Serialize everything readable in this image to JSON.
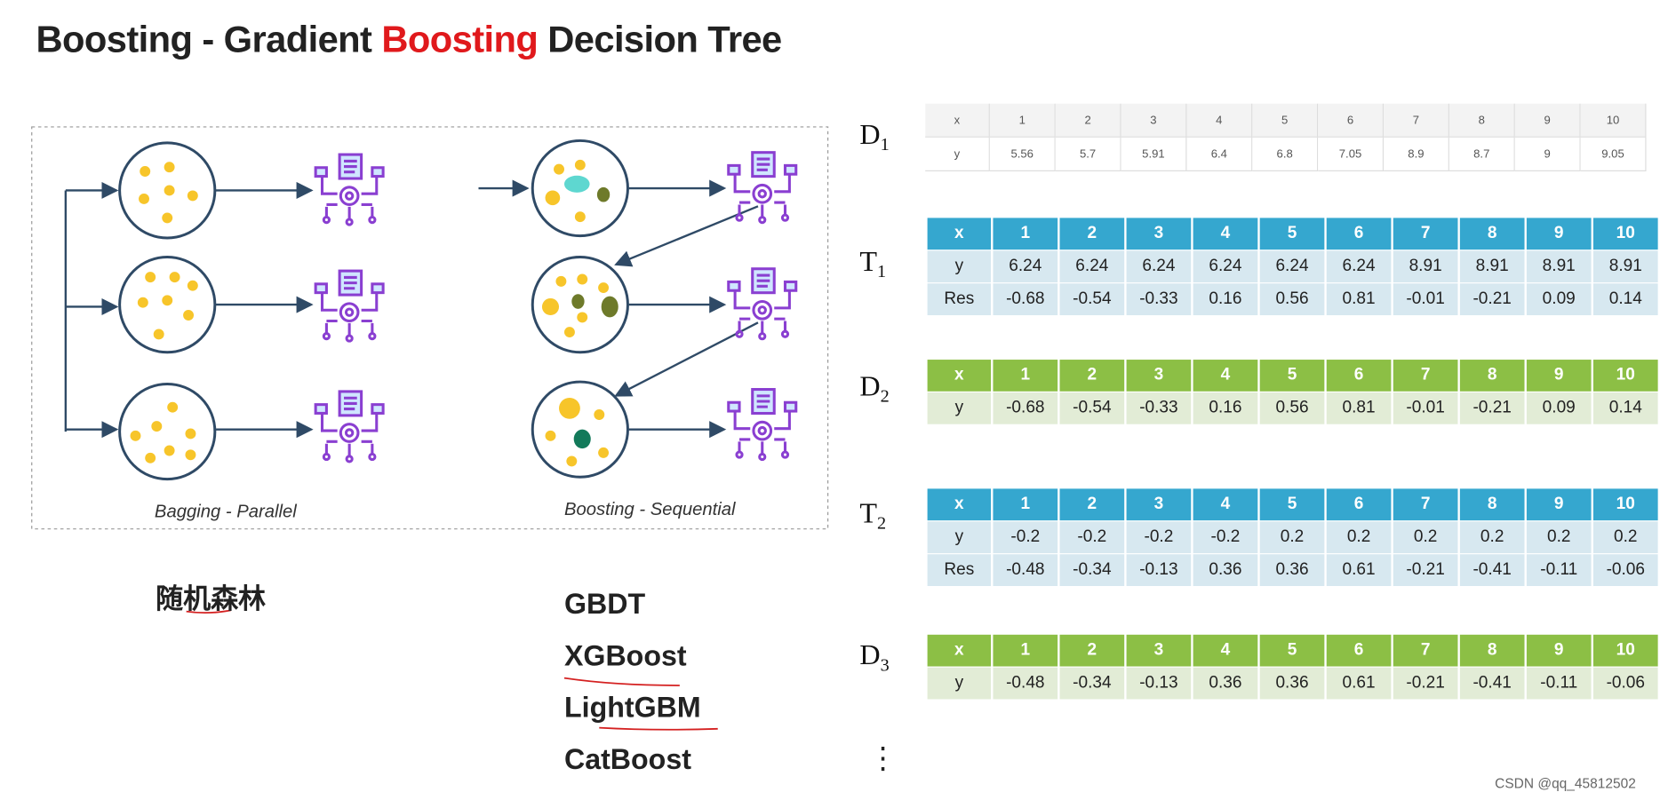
{
  "header": {
    "title_prefix": "Boosting - Gradient",
    "title_highlight": "Boosting",
    "title_suffix": "Decision Tree"
  },
  "diagram": {
    "left_caption": "Bagging - Parallel",
    "right_caption": "Boosting - Sequential"
  },
  "left_label": "随机森林",
  "algorithms": [
    "GBDT",
    "XGBoost",
    "LightGBM",
    "CatBoost"
  ],
  "continuation": "⋮",
  "watermark": "CSDN @qq_45812502",
  "tables": [
    {
      "label": {
        "letter": "D",
        "subscript": "1"
      },
      "rows": [
        {
          "head": "x",
          "cells": [
            "1",
            "2",
            "3",
            "4",
            "5",
            "6",
            "7",
            "8",
            "9",
            "10"
          ]
        },
        {
          "head": "y",
          "cells": [
            "5.56",
            "5.7",
            "5.91",
            "6.4",
            "6.8",
            "7.05",
            "8.9",
            "8.7",
            "9",
            "9.05"
          ]
        }
      ]
    },
    {
      "label": {
        "letter": "T",
        "subscript": "1"
      },
      "header_color": "#35a7cf",
      "body_color": "#d7e8f0",
      "rows": [
        {
          "head": "x",
          "cells": [
            "1",
            "2",
            "3",
            "4",
            "5",
            "6",
            "7",
            "8",
            "9",
            "10"
          ]
        },
        {
          "head": "y",
          "cells": [
            "6.24",
            "6.24",
            "6.24",
            "6.24",
            "6.24",
            "6.24",
            "8.91",
            "8.91",
            "8.91",
            "8.91"
          ]
        },
        {
          "head": "Res",
          "cells": [
            "-0.68",
            "-0.54",
            "-0.33",
            "0.16",
            "0.56",
            "0.81",
            "-0.01",
            "-0.21",
            "0.09",
            "0.14"
          ]
        }
      ]
    },
    {
      "label": {
        "letter": "D",
        "subscript": "2"
      },
      "header_color": "#8cbf45",
      "body_color": "#e2ecd6",
      "rows": [
        {
          "head": "x",
          "cells": [
            "1",
            "2",
            "3",
            "4",
            "5",
            "6",
            "7",
            "8",
            "9",
            "10"
          ]
        },
        {
          "head": "y",
          "cells": [
            "-0.68",
            "-0.54",
            "-0.33",
            "0.16",
            "0.56",
            "0.81",
            "-0.01",
            "-0.21",
            "0.09",
            "0.14"
          ]
        }
      ]
    },
    {
      "label": {
        "letter": "T",
        "subscript": "2"
      },
      "header_color": "#35a7cf",
      "body_color": "#d7e8f0",
      "rows": [
        {
          "head": "x",
          "cells": [
            "1",
            "2",
            "3",
            "4",
            "5",
            "6",
            "7",
            "8",
            "9",
            "10"
          ]
        },
        {
          "head": "y",
          "cells": [
            "-0.2",
            "-0.2",
            "-0.2",
            "-0.2",
            "0.2",
            "0.2",
            "0.2",
            "0.2",
            "0.2",
            "0.2"
          ]
        },
        {
          "head": "Res",
          "cells": [
            "-0.48",
            "-0.34",
            "-0.13",
            "0.36",
            "0.36",
            "0.61",
            "-0.21",
            "-0.41",
            "-0.11",
            "-0.06"
          ]
        }
      ]
    },
    {
      "label": {
        "letter": "D",
        "subscript": "3"
      },
      "header_color": "#8cbf45",
      "body_color": "#e2ecd6",
      "rows": [
        {
          "head": "x",
          "cells": [
            "1",
            "2",
            "3",
            "4",
            "5",
            "6",
            "7",
            "8",
            "9",
            "10"
          ]
        },
        {
          "head": "y",
          "cells": [
            "-0.48",
            "-0.34",
            "-0.13",
            "0.36",
            "0.36",
            "0.61",
            "-0.21",
            "-0.41",
            "-0.11",
            "-0.06"
          ]
        }
      ]
    }
  ]
}
